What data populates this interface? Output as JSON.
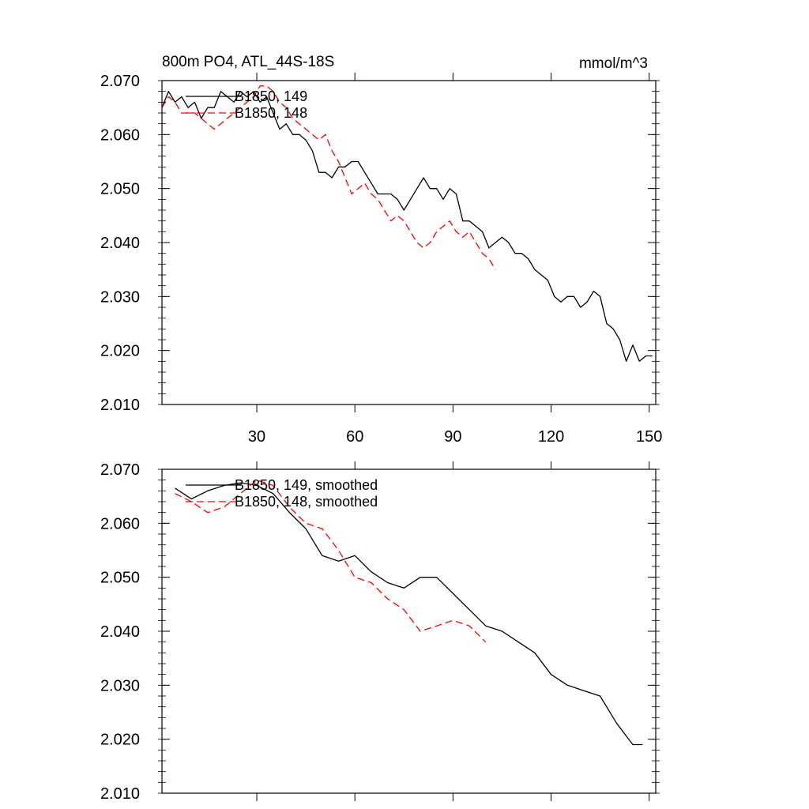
{
  "chart_data": [
    {
      "type": "line",
      "title": "800m PO4, ATL_44S-18S",
      "units": "mmol/m^3",
      "xlabel": "",
      "ylabel": "",
      "xlim": [
        1,
        152
      ],
      "ylim": [
        2.01,
        2.07
      ],
      "x_ticks": [
        30,
        60,
        90,
        120,
        150
      ],
      "y_ticks": [
        2.01,
        2.02,
        2.03,
        2.04,
        2.05,
        2.06,
        2.07
      ],
      "y_tick_labels": [
        "2.010",
        "2.020",
        "2.030",
        "2.040",
        "2.050",
        "2.060",
        "2.070"
      ],
      "x_tick_labels": [
        "30",
        "60",
        "90",
        "120",
        "150"
      ],
      "legend": "top-left",
      "series": [
        {
          "name": "B1850, 149",
          "color": "#000000",
          "dash": "solid",
          "x": [
            1,
            3,
            5,
            7,
            9,
            11,
            13,
            15,
            17,
            19,
            21,
            23,
            25,
            27,
            29,
            31,
            33,
            35,
            37,
            39,
            41,
            43,
            45,
            47,
            49,
            51,
            53,
            55,
            57,
            59,
            61,
            63,
            65,
            67,
            69,
            71,
            73,
            75,
            77,
            79,
            81,
            83,
            85,
            87,
            89,
            91,
            93,
            95,
            97,
            99,
            101,
            103,
            105,
            107,
            109,
            111,
            113,
            115,
            117,
            119,
            121,
            123,
            125,
            127,
            129,
            131,
            133,
            135,
            137,
            139,
            141,
            143,
            145,
            147,
            149,
            151
          ],
          "values": [
            2.065,
            2.068,
            2.066,
            2.067,
            2.065,
            2.066,
            2.063,
            2.065,
            2.065,
            2.068,
            2.067,
            2.066,
            2.068,
            2.067,
            2.068,
            2.066,
            2.067,
            2.064,
            2.061,
            2.062,
            2.06,
            2.06,
            2.059,
            2.057,
            2.053,
            2.053,
            2.052,
            2.054,
            2.054,
            2.055,
            2.055,
            2.053,
            2.051,
            2.049,
            2.049,
            2.049,
            2.048,
            2.046,
            2.048,
            2.05,
            2.052,
            2.05,
            2.05,
            2.048,
            2.05,
            2.049,
            2.044,
            2.044,
            2.043,
            2.042,
            2.039,
            2.04,
            2.041,
            2.04,
            2.038,
            2.038,
            2.037,
            2.035,
            2.034,
            2.033,
            2.03,
            2.029,
            2.03,
            2.03,
            2.028,
            2.029,
            2.031,
            2.03,
            2.025,
            2.024,
            2.022,
            2.018,
            2.021,
            2.018,
            2.019,
            2.019
          ]
        },
        {
          "name": "B1850, 148",
          "color": "#ff0000",
          "dash": "dashed",
          "x": [
            1,
            3,
            5,
            7,
            9,
            11,
            13,
            15,
            17,
            19,
            21,
            23,
            25,
            27,
            29,
            31,
            33,
            35,
            37,
            39,
            41,
            43,
            45,
            47,
            49,
            51,
            53,
            55,
            57,
            59,
            61,
            63,
            65,
            67,
            69,
            71,
            73,
            75,
            77,
            79,
            81,
            83,
            85,
            87,
            89,
            91,
            93,
            95,
            97,
            99,
            101,
            103
          ],
          "values": [
            2.065,
            2.067,
            2.066,
            2.064,
            2.064,
            2.064,
            2.063,
            2.062,
            2.061,
            2.062,
            2.063,
            2.064,
            2.065,
            2.066,
            2.067,
            2.069,
            2.069,
            2.068,
            2.066,
            2.065,
            2.063,
            2.062,
            2.061,
            2.06,
            2.059,
            2.06,
            2.057,
            2.055,
            2.052,
            2.049,
            2.05,
            2.051,
            2.049,
            2.048,
            2.046,
            2.044,
            2.045,
            2.044,
            2.042,
            2.04,
            2.039,
            2.04,
            2.042,
            2.043,
            2.044,
            2.042,
            2.041,
            2.042,
            2.04,
            2.038,
            2.037,
            2.035
          ]
        }
      ]
    },
    {
      "type": "line",
      "title": "",
      "xlabel": "",
      "ylabel": "",
      "xlim": [
        1,
        152
      ],
      "ylim": [
        2.01,
        2.07
      ],
      "x_ticks": [
        30,
        60,
        90,
        120,
        150
      ],
      "y_ticks": [
        2.01,
        2.02,
        2.03,
        2.04,
        2.05,
        2.06,
        2.07
      ],
      "y_tick_labels": [
        "2.010",
        "2.020",
        "2.030",
        "2.040",
        "2.050",
        "2.060",
        "2.070"
      ],
      "x_tick_labels": [],
      "legend": "top-left",
      "series": [
        {
          "name": "B1850, 149, smoothed",
          "color": "#000000",
          "dash": "solid",
          "x": [
            5,
            10,
            15,
            20,
            25,
            30,
            35,
            40,
            45,
            50,
            55,
            60,
            65,
            70,
            75,
            80,
            85,
            90,
            95,
            100,
            105,
            110,
            115,
            120,
            125,
            130,
            135,
            140,
            145,
            148
          ],
          "values": [
            2.0665,
            2.0645,
            2.066,
            2.067,
            2.0675,
            2.067,
            2.0655,
            2.062,
            2.059,
            2.054,
            2.053,
            2.054,
            2.051,
            2.049,
            2.048,
            2.05,
            2.05,
            2.047,
            2.044,
            2.041,
            2.04,
            2.038,
            2.036,
            2.032,
            2.03,
            2.029,
            2.028,
            2.023,
            2.019,
            2.019
          ]
        },
        {
          "name": "B1850, 148, smoothed",
          "color": "#ff0000",
          "dash": "dashed",
          "x": [
            5,
            10,
            15,
            20,
            25,
            30,
            35,
            40,
            45,
            50,
            55,
            60,
            65,
            70,
            75,
            80,
            85,
            90,
            95,
            100
          ],
          "values": [
            2.0655,
            2.064,
            2.062,
            2.063,
            2.0655,
            2.068,
            2.067,
            2.063,
            2.06,
            2.059,
            2.055,
            2.05,
            2.049,
            2.046,
            2.044,
            2.04,
            2.041,
            2.042,
            2.041,
            2.038
          ]
        }
      ]
    }
  ]
}
